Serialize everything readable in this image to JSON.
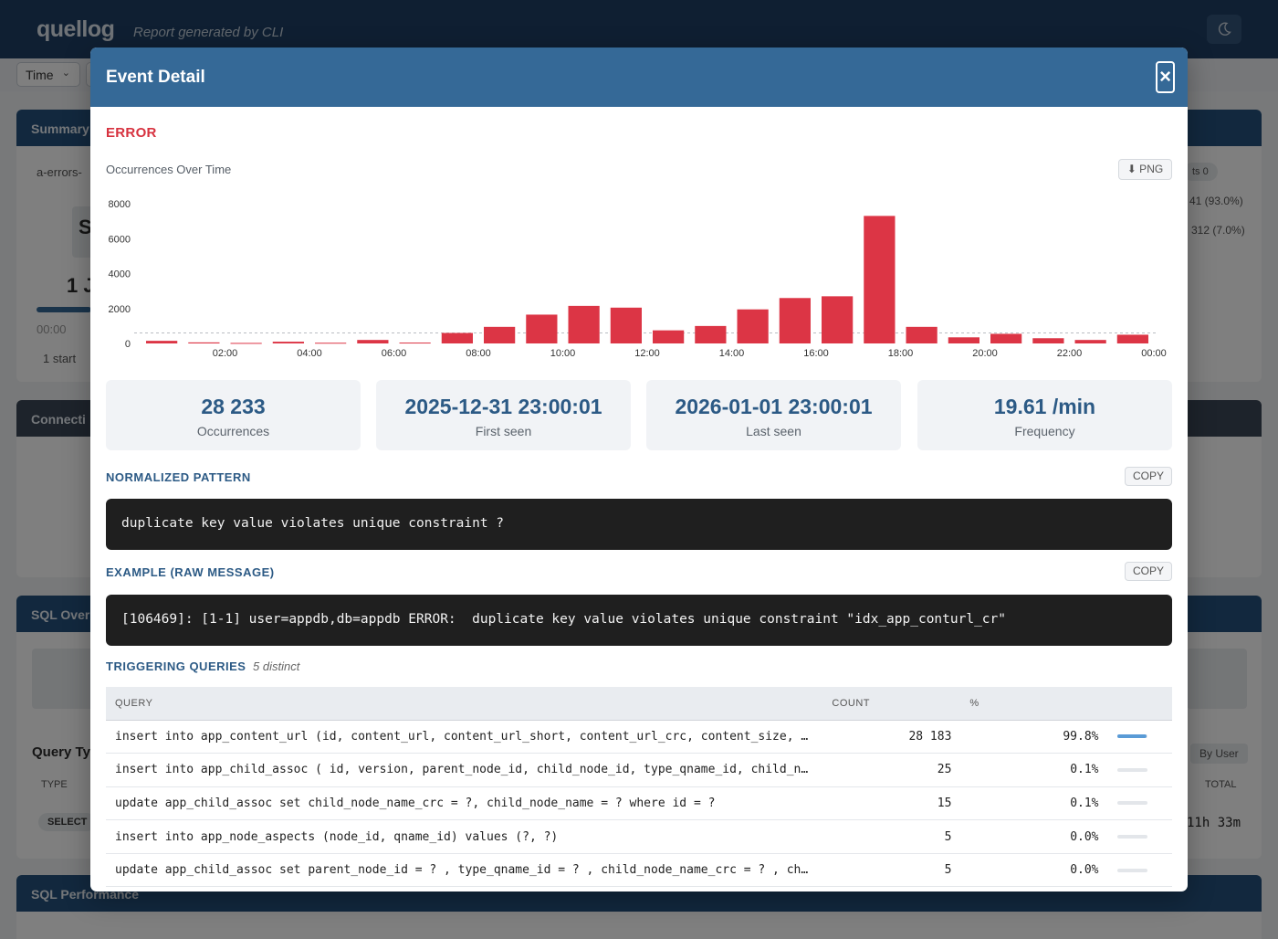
{
  "app": {
    "brand": "quellog",
    "tagline": "Report generated by CLI",
    "time_select": "Time"
  },
  "background": {
    "summary_title": "Summary",
    "file_label": "a-errors-",
    "summary_big": "S",
    "date_fragment": "1 J",
    "time_small": "00:00",
    "start_label": "1 start",
    "badge_text": "ts   0",
    "pct1": "41 (93.0%)",
    "pct2": "312 (7.0%)",
    "connections_title": "Connecti",
    "sql_overview_title": "SQL Over",
    "query_types_title": "Query Ty",
    "type_col": "TYPE",
    "select_badge": "SELECT",
    "by_user": "By User",
    "total_col": "TOTAL",
    "total_val": "11h 33m",
    "sql_perf_title": "SQL Performance"
  },
  "modal": {
    "title": "Event Detail",
    "close": "×",
    "level": "ERROR",
    "level_color": "#d7323f",
    "chart_title": "Occurrences Over Time",
    "png_button": "⬇ PNG",
    "stats": [
      {
        "value": "28 233",
        "label": "Occurrences"
      },
      {
        "value": "2025-12-31 23:00:01",
        "label": "First seen"
      },
      {
        "value": "2026-01-01 23:00:01",
        "label": "Last seen"
      },
      {
        "value": "19.61 /min",
        "label": "Frequency"
      }
    ],
    "pattern_title": "NORMALIZED PATTERN",
    "copy_label": "COPY",
    "pattern": "duplicate key value violates unique constraint ?",
    "example_title": "EXAMPLE (RAW MESSAGE)",
    "example": "[106469]: [1-1] user=appdb,db=appdb ERROR:  duplicate key value violates unique constraint \"idx_app_conturl_cr\"",
    "triggering_title": "TRIGGERING QUERIES",
    "distinct": "5 distinct",
    "columns": {
      "query": "QUERY",
      "count": "COUNT",
      "pct": "%"
    },
    "queries": [
      {
        "query": "insert into app_content_url (id, content_url, content_url_short, content_url_crc, content_size, orphan_ti…",
        "count": "28 183",
        "pct": "99.8%",
        "share": 99.8
      },
      {
        "query": "insert into app_child_assoc ( id, version, parent_node_id, child_node_id, type_qname_id, child_node_name_…",
        "count": "25",
        "pct": "0.1%",
        "share": 0.1
      },
      {
        "query": "update app_child_assoc set child_node_name_crc = ?, child_node_name = ? where id = ?",
        "count": "15",
        "pct": "0.1%",
        "share": 0.1
      },
      {
        "query": "insert into app_node_aspects (node_id, qname_id) values (?, ?)",
        "count": "5",
        "pct": "0.0%",
        "share": 0.0
      },
      {
        "query": "update app_child_assoc set parent_node_id = ? , type_qname_id = ? , child_node_name_crc = ? , child_node_…",
        "count": "5",
        "pct": "0.0%",
        "share": 0.0
      }
    ]
  },
  "chart_data": {
    "type": "bar",
    "title": "Occurrences Over Time",
    "color": "#dc3545",
    "yticks": [
      0,
      2000,
      4000,
      6000,
      8000
    ],
    "ylim": [
      0,
      8000
    ],
    "xtick_labels": [
      "02:00",
      "04:00",
      "06:00",
      "08:00",
      "10:00",
      "12:00",
      "14:00",
      "16:00",
      "18:00",
      "20:00",
      "22:00",
      "00:00"
    ],
    "values": [
      150,
      60,
      30,
      100,
      40,
      200,
      50,
      600,
      950,
      1650,
      2150,
      2050,
      750,
      1000,
      1950,
      2600,
      2700,
      7300,
      950,
      350,
      550,
      300,
      200,
      500
    ],
    "mean_line": 600
  }
}
